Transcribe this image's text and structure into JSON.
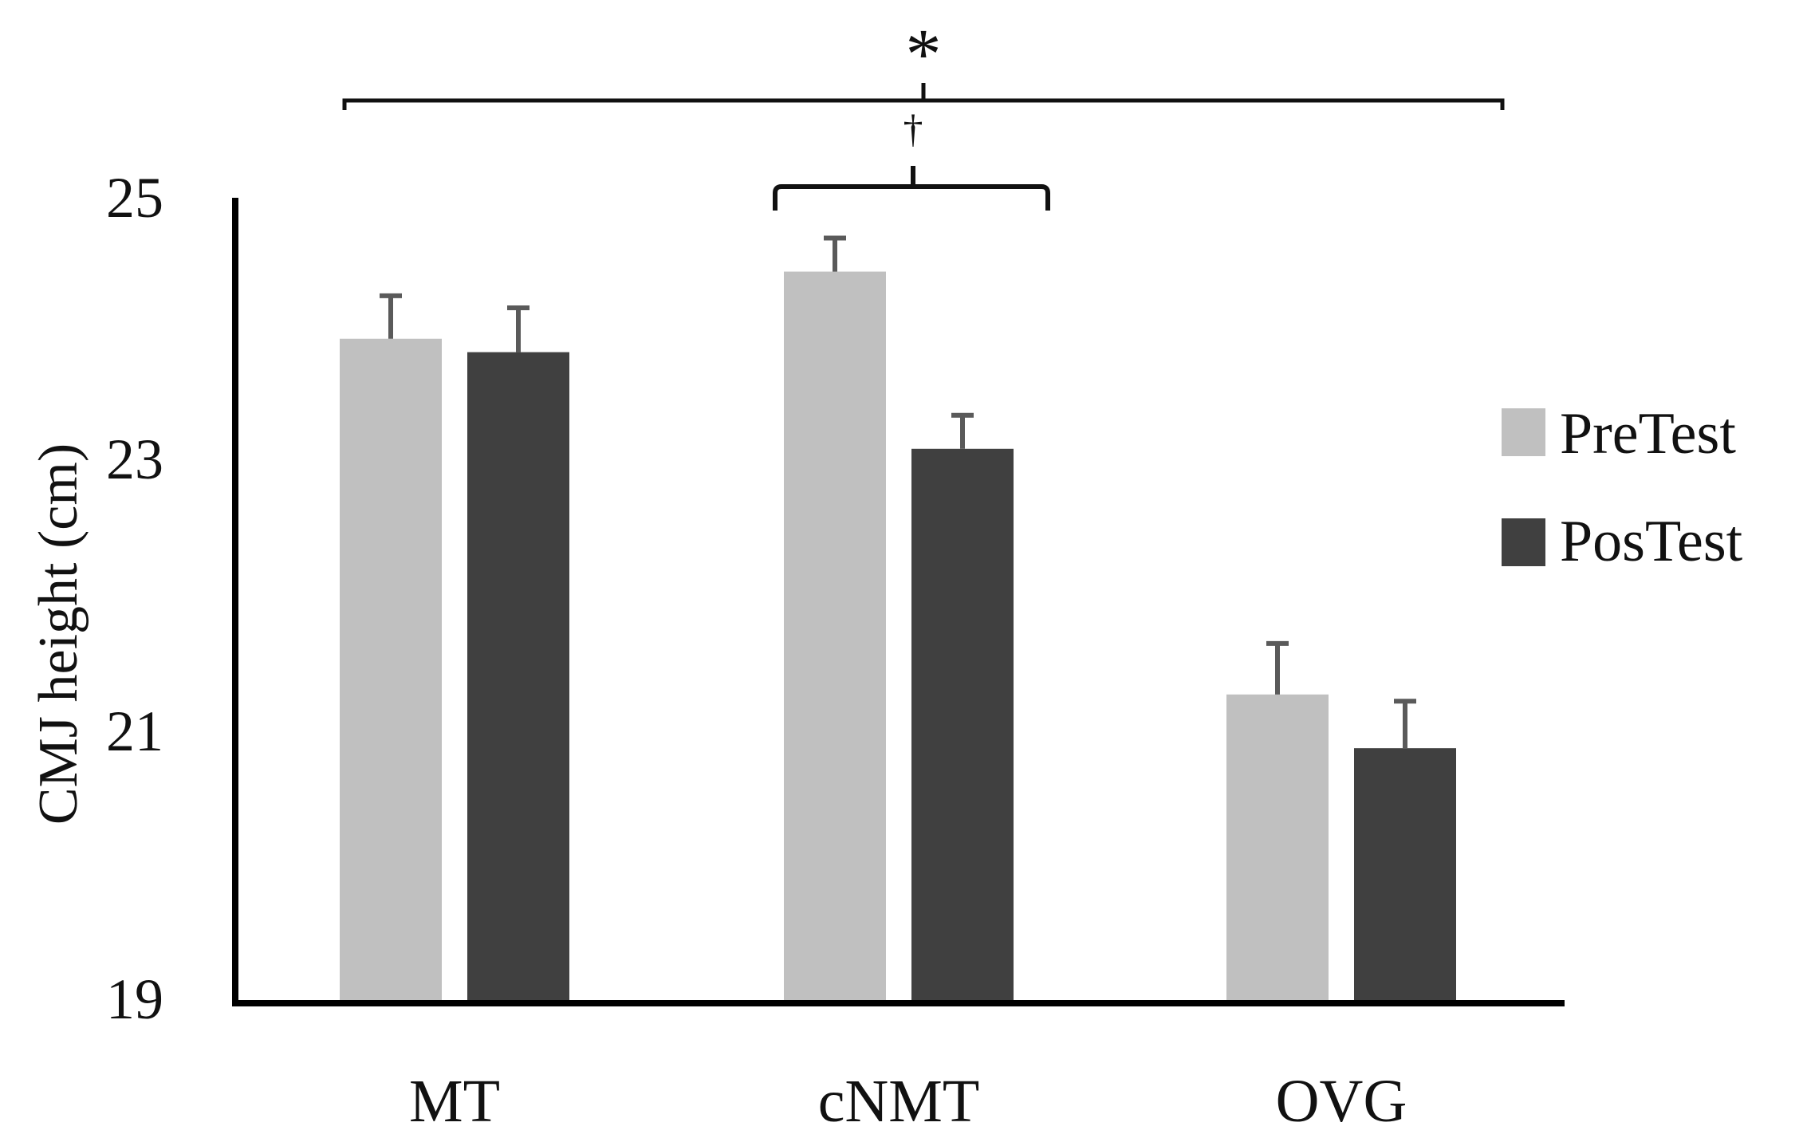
{
  "chart_data": {
    "type": "bar",
    "title": "",
    "xlabel": "",
    "ylabel": "CMJ height (cm)",
    "ylim": [
      19,
      25
    ],
    "yticks": [
      "19",
      "21",
      "23",
      "25"
    ],
    "categories": [
      "MT",
      "cNMT",
      "OVG"
    ],
    "series": [
      {
        "name": "PreTest",
        "color": "#c0c0c0",
        "values": [
          23.95,
          24.45,
          21.3
        ],
        "errors": [
          0.32,
          0.25,
          0.38
        ]
      },
      {
        "name": "PosTest",
        "color": "#404040",
        "values": [
          23.85,
          23.13,
          20.9
        ],
        "errors": [
          0.33,
          0.25,
          0.35
        ]
      }
    ],
    "legend": {
      "position": "right",
      "entries": [
        "PreTest",
        "PosTest"
      ]
    },
    "annotations": [
      {
        "label": "*",
        "spans": "MT–OVG"
      },
      {
        "label": "†",
        "spans": "cNMT"
      }
    ]
  }
}
